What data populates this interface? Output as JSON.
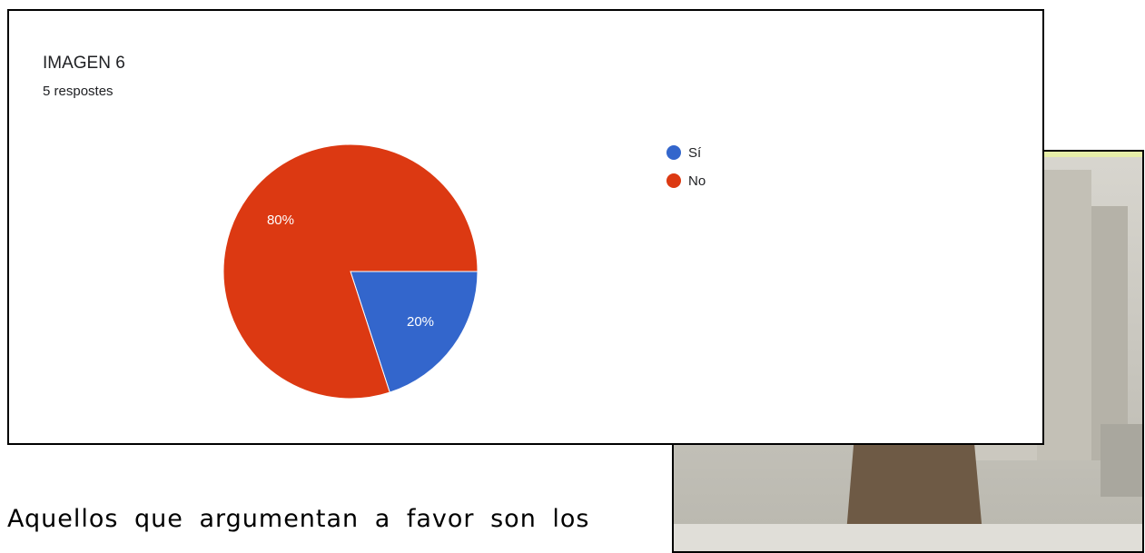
{
  "chart_data": {
    "type": "pie",
    "title": "IMAGEN 6",
    "subtitle": "5 respostes",
    "categories": [
      "Sí",
      "No"
    ],
    "values": [
      20,
      80
    ],
    "value_labels": [
      "20%",
      "80%"
    ],
    "colors": [
      "#3366cc",
      "#dc3912"
    ]
  },
  "document": {
    "text": "Aquellos que argumentan a favor son los"
  }
}
